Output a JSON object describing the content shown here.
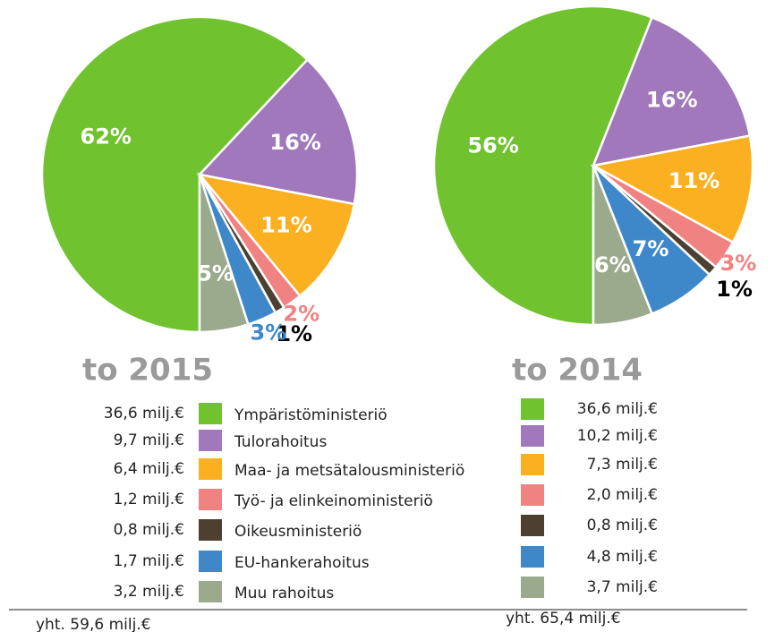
{
  "chart_data": [
    {
      "type": "pie",
      "title": "to 2015",
      "categories": [
        "Ympäristöministeriö",
        "Tulorahoitus",
        "Maa- ja metsätalousministeriö",
        "Työ- ja elinkeinoministeriö",
        "Oikeusministeriö",
        "EU-hankerahoitus",
        "Muu rahoitus"
      ],
      "values": [
        62,
        16,
        11,
        2,
        1,
        3,
        5
      ],
      "value_labels": [
        "62%",
        "16%",
        "11%",
        "2%",
        "1%",
        "3%",
        "5%"
      ],
      "colors": [
        "#70c22f",
        "#a078bb",
        "#fbb022",
        "#f08282",
        "#4d4030",
        "#3e88ca",
        "#9baa8c"
      ],
      "amount_labels": [
        "36,6 milj.€",
        "9,7 milj.€",
        "6,4 milj.€",
        "1,2 milj.€",
        "0,8 milj.€",
        "1,7 milj.€",
        "3,2 milj.€"
      ],
      "total": "yht.  59,6 milj.€"
    },
    {
      "type": "pie",
      "title": "to 2014",
      "values": [
        56,
        16,
        11,
        3,
        1,
        7,
        6
      ],
      "value_labels": [
        "56%",
        "16%",
        "11%",
        "3%",
        "1%",
        "7%",
        "6%"
      ],
      "colors": [
        "#70c22f",
        "#a078bb",
        "#fbb022",
        "#f08282",
        "#4d4030",
        "#3e88ca",
        "#9baa8c"
      ],
      "amount_labels": [
        "36,6 milj.€",
        "10,2 milj.€",
        "7,3 milj.€",
        "2,0 milj.€",
        "0,8 milj.€",
        "4,8 milj.€",
        "3,7 milj.€"
      ],
      "total": "yht.  65,4 milj.€"
    }
  ]
}
